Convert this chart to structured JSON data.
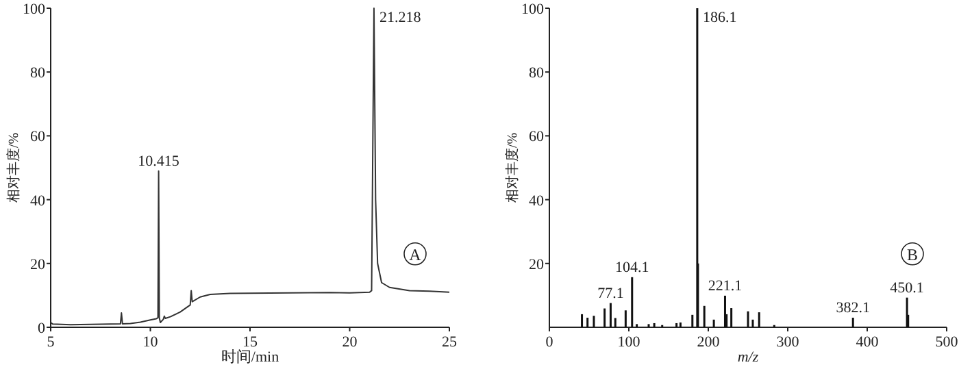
{
  "chart_data": [
    {
      "type": "line",
      "xlabel": "时间/min",
      "ylabel": "相对丰度/%",
      "xlim": [
        5,
        25
      ],
      "ylim": [
        0,
        100
      ],
      "xticks": [
        5,
        10,
        15,
        20,
        25
      ],
      "yticks": [
        0,
        20,
        40,
        60,
        80,
        100
      ],
      "x": [
        5,
        5.1,
        6,
        7,
        8,
        8.5,
        8.55,
        8.6,
        9,
        9.5,
        10,
        10.3,
        10.38,
        10.415,
        10.45,
        10.5,
        10.65,
        10.7,
        10.75,
        11,
        11.5,
        12,
        12.05,
        12.1,
        12.5,
        13,
        14,
        15,
        17,
        19,
        20,
        21,
        21.1,
        21.218,
        21.3,
        21.4,
        21.6,
        22,
        23,
        24,
        25
      ],
      "series": [
        {
          "color": "#333333",
          "values": [
            1.5,
            1,
            0.8,
            0.9,
            1,
            1.1,
            4.5,
            1.1,
            1.2,
            1.6,
            2.3,
            2.7,
            3,
            49,
            3,
            1.5,
            2.5,
            3.5,
            2.8,
            3.3,
            4.8,
            7,
            11.5,
            8,
            9.5,
            10.3,
            10.6,
            10.7,
            10.8,
            10.9,
            10.8,
            11,
            11.5,
            100,
            40,
            20,
            14,
            12.5,
            11.5,
            11.3,
            11
          ]
        }
      ],
      "annotations": [
        {
          "text": "10.415",
          "x": 10.415,
          "y": 49
        },
        {
          "text": "21.218",
          "x": 21.218,
          "y": 100
        },
        "A"
      ]
    },
    {
      "type": "bar",
      "xlabel": "m/z",
      "ylabel": "相对丰度/%",
      "xlim": [
        0,
        500
      ],
      "ylim": [
        0,
        100
      ],
      "xticks": [
        0,
        100,
        200,
        300,
        400,
        500
      ],
      "yticks": [
        20,
        40,
        60,
        80,
        100
      ],
      "x": [
        41,
        48,
        56,
        69.5,
        77.1,
        83,
        96,
        104.1,
        110,
        125,
        132,
        142,
        160,
        165,
        180,
        186.1,
        187,
        195,
        207,
        221.1,
        223,
        229,
        250,
        256,
        264,
        283,
        382.1,
        450.1,
        451.5
      ],
      "series": [
        {
          "color": "#111111",
          "values": [
            4.1,
            3,
            3.6,
            5.9,
            7.6,
            2.9,
            5.3,
            15.7,
            1,
            1,
            1.3,
            0.7,
            1.3,
            1.5,
            3.9,
            100,
            20,
            6.7,
            2.4,
            9.9,
            4.1,
            6,
            5,
            2.4,
            4.7,
            0.7,
            3,
            9.3,
            3.9
          ]
        }
      ],
      "annotations": [
        {
          "text": "77.1",
          "x": 77.1,
          "y": 7.6
        },
        {
          "text": "104.1",
          "x": 104.1,
          "y": 15.7
        },
        {
          "text": "186.1",
          "x": 186.1,
          "y": 100
        },
        {
          "text": "221.1",
          "x": 221.1,
          "y": 9.9
        },
        {
          "text": "382.1",
          "x": 382.1,
          "y": 3
        },
        {
          "text": "450.1",
          "x": 450.1,
          "y": 9.3
        },
        "B"
      ]
    }
  ]
}
